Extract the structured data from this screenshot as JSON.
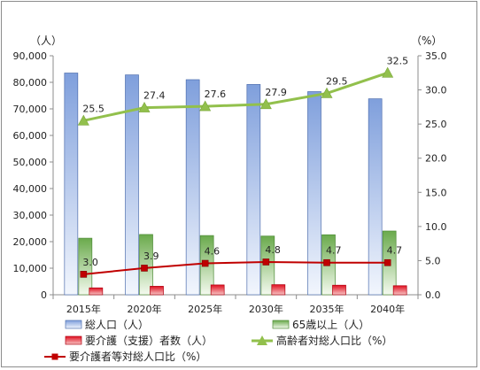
{
  "chart_data": {
    "type": "bar",
    "categories": [
      "2015年",
      "2020年",
      "2025年",
      "2030年",
      "2035年",
      "2040年"
    ],
    "left_unit": "（人）",
    "right_unit": "（%）",
    "ylim_left": [
      0,
      90000
    ],
    "ylim_right": [
      0,
      35
    ],
    "left_ticks": [
      "0",
      "10,000",
      "20,000",
      "30,000",
      "40,000",
      "50,000",
      "60,000",
      "70,000",
      "80,000",
      "90,000"
    ],
    "right_ticks": [
      "0.0",
      "5.0",
      "10.0",
      "15.0",
      "20.0",
      "25.0",
      "30.0",
      "35.0"
    ],
    "grid": false,
    "series": [
      {
        "name": "総人口（人）",
        "kind": "bar",
        "axis": "left",
        "color": "#6f8fd0",
        "values": [
          83500,
          82800,
          81000,
          79200,
          76500,
          73800
        ]
      },
      {
        "name": "65歳以上（人）",
        "kind": "bar",
        "axis": "left",
        "color": "#77b15a",
        "values": [
          21300,
          22700,
          22300,
          22100,
          22600,
          24000
        ]
      },
      {
        "name": "要介護（支援）者数（人）",
        "kind": "bar",
        "axis": "left",
        "color": "#e0202a",
        "values": [
          2600,
          3200,
          3700,
          3800,
          3600,
          3400
        ]
      },
      {
        "name": "高齢者対総人口比（%）",
        "kind": "line",
        "axis": "right",
        "color": "#92c04c",
        "values": [
          25.5,
          27.4,
          27.6,
          27.9,
          29.5,
          32.5
        ],
        "labels": [
          "25.5",
          "27.4",
          "27.6",
          "27.9",
          "29.5",
          "32.5"
        ]
      },
      {
        "name": "要介護者等対総人口比（%）",
        "kind": "line",
        "axis": "right",
        "color": "#c00000",
        "values": [
          3.0,
          3.9,
          4.6,
          4.8,
          4.7,
          4.7
        ],
        "labels": [
          "3.0",
          "3.9",
          "4.6",
          "4.8",
          "4.7",
          "4.7"
        ]
      }
    ],
    "legend_position": "bottom"
  }
}
